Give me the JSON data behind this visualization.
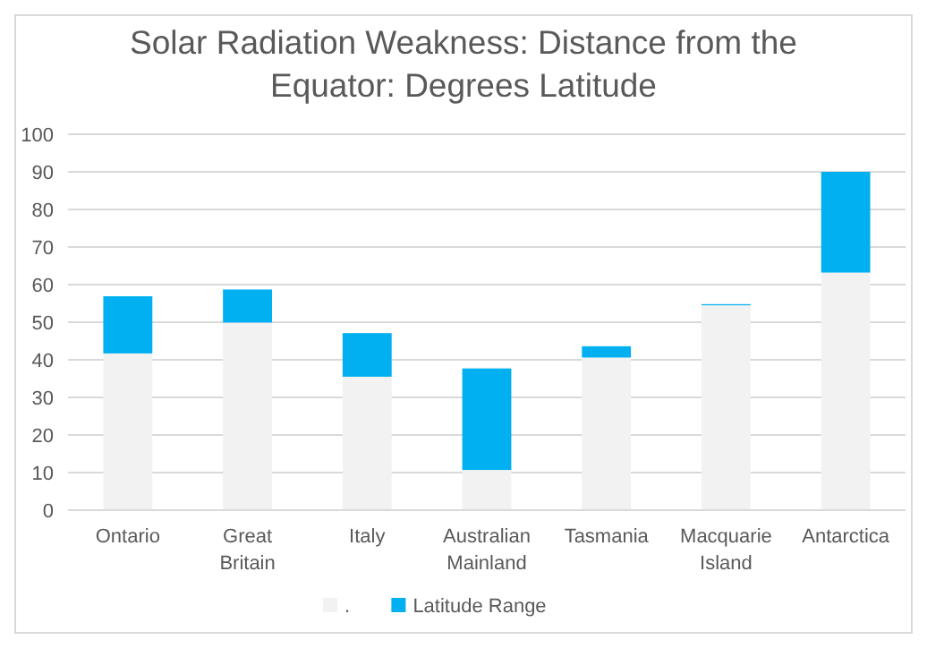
{
  "chart_data": {
    "type": "bar",
    "title": "Solar Radiation Weakness: Distance from the Equator: Degrees Latitude",
    "stacked": true,
    "categories": [
      "Ontario",
      "Great Britain",
      "Italy",
      "Australian Mainland",
      "Tasmania",
      "Macquarie Island",
      "Antarctica"
    ],
    "series": [
      {
        "name": ".",
        "color": "#f2f2f2",
        "values": [
          41.7,
          49.9,
          35.5,
          10.7,
          40.6,
          54.5,
          63.2
        ]
      },
      {
        "name": "Latitude Range",
        "color": "#00b0f0",
        "values": [
          15.2,
          8.8,
          11.6,
          27.0,
          3.0,
          0.3,
          26.8
        ]
      }
    ],
    "ylim": [
      0,
      100
    ],
    "yticks": [
      0,
      10,
      20,
      30,
      40,
      50,
      60,
      70,
      80,
      90,
      100
    ],
    "grid": "y",
    "legend": "bottom"
  }
}
